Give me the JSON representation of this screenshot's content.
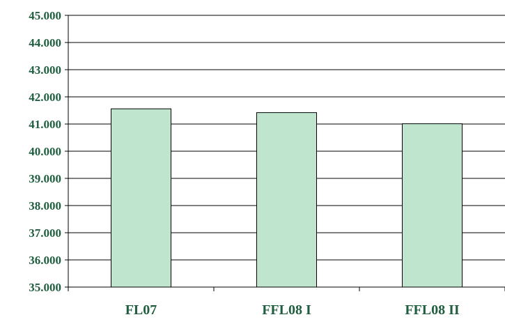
{
  "chart_data": {
    "type": "bar",
    "categories": [
      "FL07",
      "FFL08 I",
      "FFL08 II"
    ],
    "values": [
      41560,
      41420,
      41010
    ],
    "ylim": [
      35000,
      45000
    ],
    "y_ticks": [
      "35.000",
      "36.000",
      "37.000",
      "38.000",
      "39.000",
      "40.000",
      "41.000",
      "42.000",
      "43.000",
      "44.000",
      "45.000"
    ],
    "title": "",
    "xlabel": "",
    "ylabel": "",
    "grid": true,
    "legend": "none"
  },
  "colors": {
    "bar_fill": "#bfe5cf",
    "bar_stroke": "#000000",
    "axis": "#000000",
    "grid": "#000000",
    "label_text": "#1f5f3f"
  }
}
